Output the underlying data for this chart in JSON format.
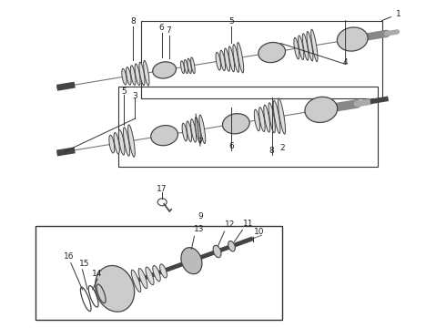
{
  "bg_color": "#ffffff",
  "fig_width": 4.9,
  "fig_height": 3.6,
  "dpi": 100,
  "line_color": "#333333",
  "text_color": "#222222",
  "part_color": "#555555",
  "font_size": 6.5
}
